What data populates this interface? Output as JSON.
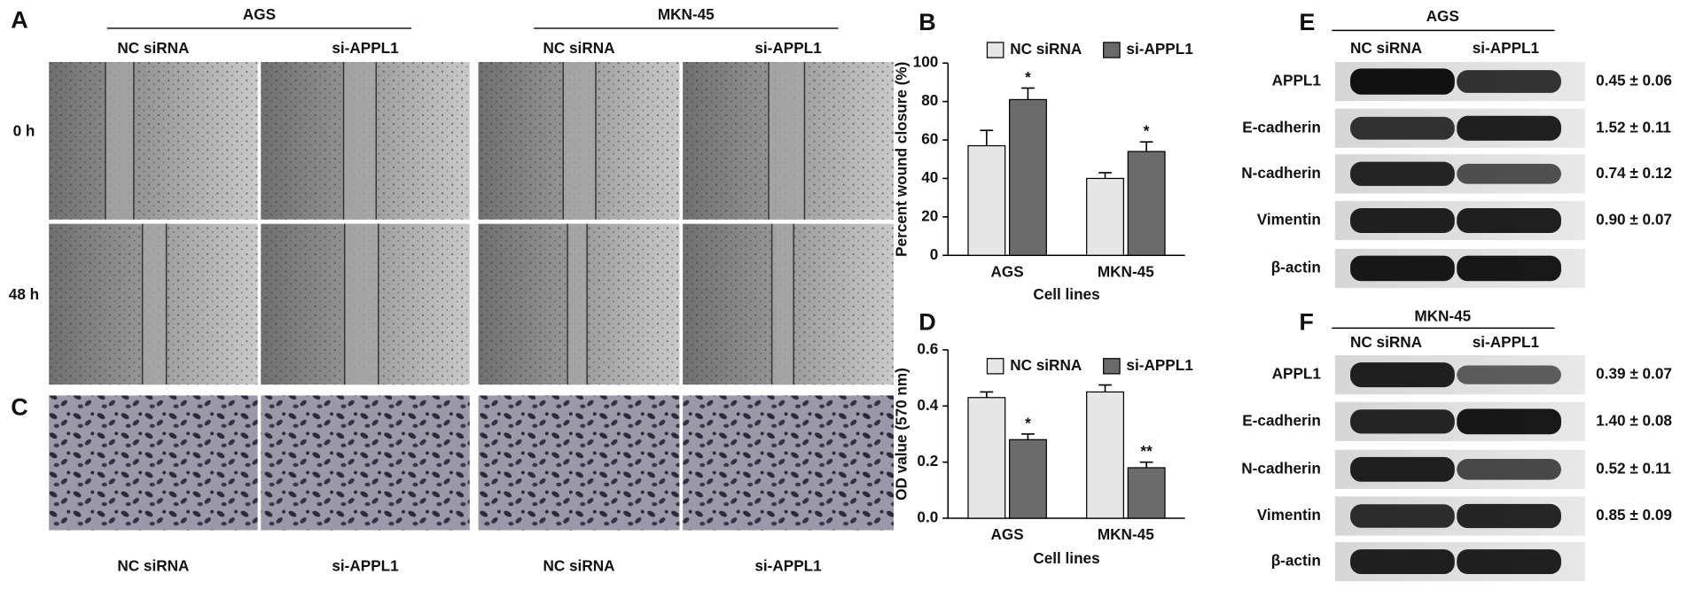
{
  "figure": {
    "panel_a": {
      "label": "A",
      "groups": [
        {
          "name": "AGS",
          "conditions": [
            "NC siRNA",
            "si-APPL1"
          ]
        },
        {
          "name": "MKN-45",
          "conditions": [
            "NC siRNA",
            "si-APPL1"
          ]
        }
      ],
      "timepoints": [
        "0 h",
        "48 h"
      ]
    },
    "panel_c": {
      "label": "C",
      "conditions": [
        "NC siRNA",
        "si-APPL1",
        "NC siRNA",
        "si-APPL1"
      ]
    },
    "panel_e": {
      "label": "E",
      "cell_line": "AGS",
      "conditions": [
        "NC siRNA",
        "si-APPL1"
      ],
      "rows": [
        {
          "protein": "APPL1",
          "ratio": "0.45 ± 0.06"
        },
        {
          "protein": "E-cadherin",
          "ratio": "1.52 ± 0.11"
        },
        {
          "protein": "N-cadherin",
          "ratio": "0.74 ± 0.12"
        },
        {
          "protein": "Vimentin",
          "ratio": "0.90 ± 0.07"
        },
        {
          "protein": "β-actin"
        }
      ]
    },
    "panel_f": {
      "label": "F",
      "cell_line": "MKN-45",
      "conditions": [
        "NC siRNA",
        "si-APPL1"
      ],
      "rows": [
        {
          "protein": "APPL1",
          "ratio": "0.39 ± 0.07"
        },
        {
          "protein": "E-cadherin",
          "ratio": "1.40 ± 0.08"
        },
        {
          "protein": "N-cadherin",
          "ratio": "0.52 ± 0.11"
        },
        {
          "protein": "Vimentin",
          "ratio": "0.85 ± 0.09"
        },
        {
          "protein": "β-actin"
        }
      ]
    }
  },
  "chart_data": [
    {
      "type": "bar",
      "panel_label": "B",
      "y_label": "Percent wound closure (%)",
      "x_label": "Cell lines",
      "categories": [
        "AGS",
        "MKN-45"
      ],
      "ylim": [
        0,
        100
      ],
      "yticks": [
        0,
        20,
        40,
        60,
        80,
        100
      ],
      "series": [
        {
          "name": "NC siRNA",
          "color": "#e6e6e6",
          "values": [
            57,
            40
          ],
          "errors": [
            8,
            3
          ]
        },
        {
          "name": "si-APPL1",
          "color": "#6b6b6b",
          "values": [
            81,
            54
          ],
          "errors": [
            6,
            5
          ],
          "annotations": [
            "*",
            "*"
          ]
        }
      ]
    },
    {
      "type": "bar",
      "panel_label": "D",
      "y_label": "OD value (570 nm)",
      "x_label": "Cell lines",
      "categories": [
        "AGS",
        "MKN-45"
      ],
      "ylim": [
        0,
        0.6
      ],
      "yticks": [
        {
          "value": 0,
          "label": "0.0"
        },
        0.2,
        0.4,
        0.6
      ],
      "series": [
        {
          "name": "NC siRNA",
          "color": "#e6e6e6",
          "values": [
            0.43,
            0.45
          ],
          "errors": [
            0.02,
            0.025
          ]
        },
        {
          "name": "si-APPL1",
          "color": "#6b6b6b",
          "values": [
            0.28,
            0.18
          ],
          "errors": [
            0.02,
            0.02
          ],
          "annotations": [
            "*",
            "**"
          ]
        }
      ]
    }
  ]
}
